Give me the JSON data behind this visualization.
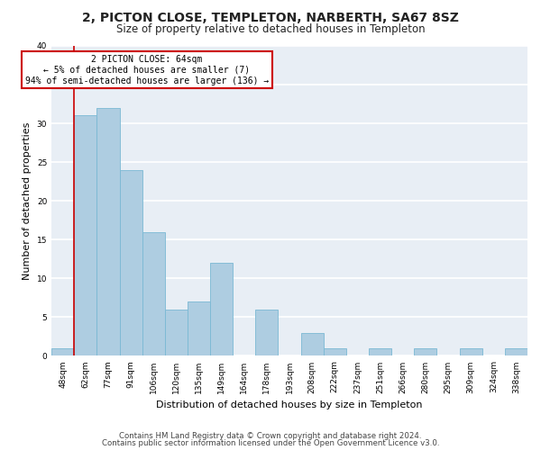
{
  "title": "2, PICTON CLOSE, TEMPLETON, NARBERTH, SA67 8SZ",
  "subtitle": "Size of property relative to detached houses in Templeton",
  "xlabel": "Distribution of detached houses by size in Templeton",
  "ylabel": "Number of detached properties",
  "categories": [
    "48sqm",
    "62sqm",
    "77sqm",
    "91sqm",
    "106sqm",
    "120sqm",
    "135sqm",
    "149sqm",
    "164sqm",
    "178sqm",
    "193sqm",
    "208sqm",
    "222sqm",
    "237sqm",
    "251sqm",
    "266sqm",
    "280sqm",
    "295sqm",
    "309sqm",
    "324sqm",
    "338sqm"
  ],
  "values": [
    1,
    31,
    32,
    24,
    16,
    6,
    7,
    12,
    0,
    6,
    0,
    3,
    1,
    0,
    1,
    0,
    1,
    0,
    1,
    0,
    1
  ],
  "bar_color": "#aecde1",
  "bar_edge_color": "#7ab8d4",
  "highlight_line_color": "#cc0000",
  "annotation_box_text": "2 PICTON CLOSE: 64sqm\n← 5% of detached houses are smaller (7)\n94% of semi-detached houses are larger (136) →",
  "annotation_box_edge_color": "#cc0000",
  "ylim": [
    0,
    40
  ],
  "yticks": [
    0,
    5,
    10,
    15,
    20,
    25,
    30,
    35,
    40
  ],
  "footer_line1": "Contains HM Land Registry data © Crown copyright and database right 2024.",
  "footer_line2": "Contains public sector information licensed under the Open Government Licence v3.0.",
  "background_color": "#e8eef5",
  "grid_color": "#ffffff",
  "title_fontsize": 10,
  "subtitle_fontsize": 8.5,
  "tick_fontsize": 6.5,
  "ylabel_fontsize": 8,
  "xlabel_fontsize": 8,
  "footer_fontsize": 6.2
}
